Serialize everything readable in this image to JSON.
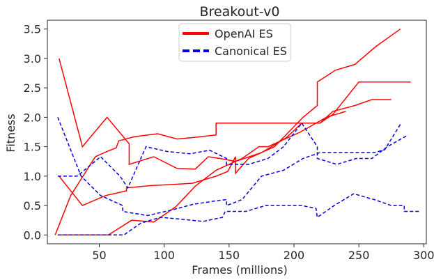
{
  "chart_data": {
    "type": "line",
    "title": "Breakout-v0",
    "xlabel": "Frames (millions)",
    "ylabel": "Fitness",
    "xlim": [
      10,
      302
    ],
    "ylim": [
      -0.15,
      3.65
    ],
    "xticks": [
      50,
      100,
      150,
      200,
      250,
      300
    ],
    "yticks": [
      0.0,
      0.5,
      1.0,
      1.5,
      2.0,
      2.5,
      3.0,
      3.5
    ],
    "grid": false,
    "legend_position": "top-center",
    "legend": [
      {
        "label": "OpenAI ES",
        "color": "#ff0000",
        "dash": "solid"
      },
      {
        "label": "Canonical ES",
        "color": "#0000dd",
        "dash": "dashed"
      }
    ],
    "series": [
      {
        "group": "OpenAI ES",
        "color": "#ff0000",
        "dash": "solid",
        "points": [
          [
            19,
            3.0
          ],
          [
            37,
            1.5
          ],
          [
            56,
            2.0
          ],
          [
            73,
            1.55
          ],
          [
            73,
            1.2
          ],
          [
            92,
            1.33
          ],
          [
            110,
            1.13
          ],
          [
            124,
            1.12
          ],
          [
            134,
            1.33
          ],
          [
            143,
            1.3
          ],
          [
            155,
            1.25
          ],
          [
            175,
            1.4
          ],
          [
            194,
            1.65
          ],
          [
            206,
            1.9
          ],
          [
            220,
            1.9
          ],
          [
            230,
            2.1
          ],
          [
            247,
            2.2
          ],
          [
            260,
            2.3
          ],
          [
            275,
            2.3
          ]
        ]
      },
      {
        "group": "OpenAI ES",
        "color": "#ff0000",
        "dash": "solid",
        "points": [
          [
            16,
            0.0
          ],
          [
            28,
            0.67
          ],
          [
            47,
            1.33
          ],
          [
            56,
            1.42
          ],
          [
            63,
            1.48
          ],
          [
            65,
            1.6
          ],
          [
            77,
            1.67
          ],
          [
            95,
            1.72
          ],
          [
            110,
            1.63
          ],
          [
            124,
            1.66
          ],
          [
            140,
            1.7
          ],
          [
            140,
            1.9
          ],
          [
            175,
            1.9
          ],
          [
            220,
            1.9
          ],
          [
            230,
            2.05
          ],
          [
            250,
            2.6
          ],
          [
            290,
            2.6
          ]
        ]
      },
      {
        "group": "OpenAI ES",
        "color": "#ff0000",
        "dash": "solid",
        "points": [
          [
            19,
            1.0
          ],
          [
            37,
            0.5
          ],
          [
            55,
            0.67
          ],
          [
            71,
            0.75
          ],
          [
            71,
            0.8
          ],
          [
            90,
            0.84
          ],
          [
            108,
            0.86
          ],
          [
            122,
            0.88
          ],
          [
            140,
            1.0
          ],
          [
            149,
            1.08
          ],
          [
            155,
            1.33
          ],
          [
            155,
            1.05
          ],
          [
            165,
            1.3
          ],
          [
            185,
            1.5
          ],
          [
            207,
            2.0
          ],
          [
            218,
            2.2
          ],
          [
            218,
            2.6
          ],
          [
            232,
            2.8
          ],
          [
            247,
            2.9
          ],
          [
            263,
            3.2
          ],
          [
            282,
            3.5
          ]
        ]
      },
      {
        "group": "OpenAI ES",
        "color": "#ff0000",
        "dash": "solid",
        "points": [
          [
            19,
            0.0
          ],
          [
            40,
            0.0
          ],
          [
            57,
            0.0
          ],
          [
            75,
            0.25
          ],
          [
            92,
            0.22
          ],
          [
            109,
            0.48
          ],
          [
            124,
            0.83
          ],
          [
            140,
            1.1
          ],
          [
            155,
            1.25
          ],
          [
            160,
            1.3
          ],
          [
            173,
            1.5
          ],
          [
            180,
            1.5
          ],
          [
            205,
            1.75
          ],
          [
            213,
            1.85
          ],
          [
            225,
            2.0
          ],
          [
            240,
            2.1
          ]
        ]
      },
      {
        "group": "Canonical ES",
        "color": "#0000dd",
        "dash": "dashed",
        "points": [
          [
            18,
            2.0
          ],
          [
            36,
            1.0
          ],
          [
            51,
            0.67
          ],
          [
            68,
            0.5
          ],
          [
            68,
            0.4
          ],
          [
            87,
            0.33
          ],
          [
            105,
            0.42
          ],
          [
            122,
            0.52
          ],
          [
            140,
            0.58
          ],
          [
            148,
            0.6
          ],
          [
            148,
            0.5
          ],
          [
            160,
            0.6
          ],
          [
            175,
            1.0
          ],
          [
            192,
            1.1
          ],
          [
            207,
            1.3
          ],
          [
            220,
            1.4
          ],
          [
            234,
            1.4
          ],
          [
            250,
            1.4
          ],
          [
            262,
            1.4
          ],
          [
            270,
            1.45
          ],
          [
            282,
            1.88
          ]
        ]
      },
      {
        "group": "Canonical ES",
        "color": "#0000dd",
        "dash": "dashed",
        "points": [
          [
            18,
            1.0
          ],
          [
            33,
            1.0
          ],
          [
            51,
            1.33
          ],
          [
            66,
            1.0
          ],
          [
            72,
            0.8
          ],
          [
            86,
            1.5
          ],
          [
            102,
            1.42
          ],
          [
            120,
            1.38
          ],
          [
            135,
            1.44
          ],
          [
            148,
            1.3
          ],
          [
            148,
            1.2
          ],
          [
            165,
            1.2
          ],
          [
            180,
            1.3
          ],
          [
            192,
            1.5
          ],
          [
            206,
            1.9
          ],
          [
            218,
            1.5
          ],
          [
            218,
            1.3
          ],
          [
            233,
            1.2
          ],
          [
            248,
            1.3
          ],
          [
            260,
            1.3
          ],
          [
            272,
            1.5
          ],
          [
            288,
            1.7
          ]
        ]
      },
      {
        "group": "Canonical ES",
        "color": "#0000dd",
        "dash": "dashed",
        "points": [
          [
            18,
            0.0
          ],
          [
            33,
            0.0
          ],
          [
            50,
            0.0
          ],
          [
            69,
            0.0
          ],
          [
            82,
            0.2
          ],
          [
            97,
            0.3
          ],
          [
            112,
            0.27
          ],
          [
            130,
            0.23
          ],
          [
            145,
            0.3
          ],
          [
            147,
            0.4
          ],
          [
            163,
            0.4
          ],
          [
            178,
            0.5
          ],
          [
            190,
            0.5
          ],
          [
            206,
            0.5
          ],
          [
            217,
            0.45
          ],
          [
            218,
            0.3
          ],
          [
            231,
            0.5
          ],
          [
            246,
            0.7
          ],
          [
            262,
            0.6
          ],
          [
            275,
            0.5
          ],
          [
            285,
            0.5
          ],
          [
            285,
            0.4
          ],
          [
            297,
            0.4
          ]
        ]
      }
    ]
  }
}
